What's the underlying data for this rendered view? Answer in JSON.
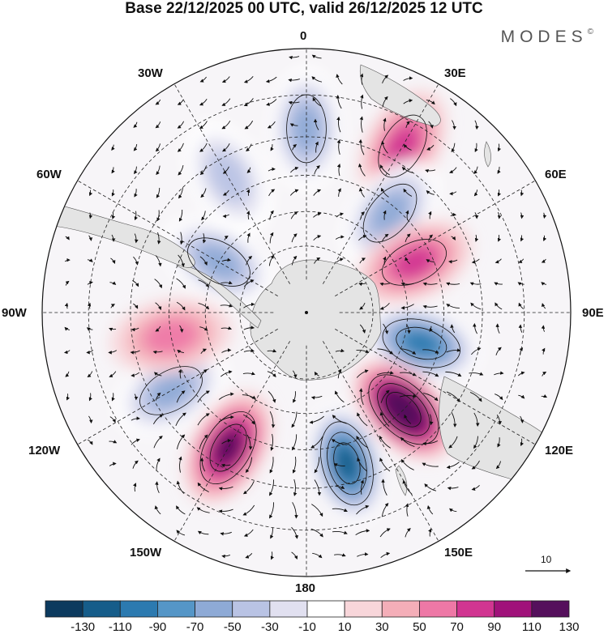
{
  "header": {
    "title": "Base 22/12/2025 00 UTC, valid 26/12/2025 12 UTC",
    "logo": "MODES",
    "logo_mark": "©"
  },
  "map": {
    "projection": "south polar stereographic",
    "longitude_labels": [
      "0",
      "30E",
      "60E",
      "90E",
      "120E",
      "150E",
      "180",
      "150W",
      "120W",
      "90W",
      "60W",
      "30W"
    ],
    "anomalies": [
      {
        "sign": "negative",
        "lon": 0,
        "lat": -38,
        "value": -50
      },
      {
        "sign": "positive",
        "lon": 30,
        "lat": -36,
        "value": 50
      },
      {
        "sign": "negative",
        "lon": 40,
        "lat": -52,
        "value": -50
      },
      {
        "sign": "positive",
        "lon": 65,
        "lat": -55,
        "value": 50
      },
      {
        "sign": "negative",
        "lon": 105,
        "lat": -55,
        "value": -90
      },
      {
        "sign": "positive",
        "lon": 135,
        "lat": -50,
        "value": 130
      },
      {
        "sign": "negative",
        "lon": 165,
        "lat": -45,
        "value": -110
      },
      {
        "sign": "positive",
        "lon": -150,
        "lat": -45,
        "value": 90
      },
      {
        "sign": "negative",
        "lon": -120,
        "lat": -45,
        "value": -50
      },
      {
        "sign": "positive",
        "lon": -100,
        "lat": -50,
        "value": 30
      },
      {
        "sign": "negative",
        "lon": -60,
        "lat": -60,
        "value": -50
      },
      {
        "sign": "negative",
        "lon": -30,
        "lat": -45,
        "value": -30
      }
    ],
    "reference_vector": "10",
    "colors": {
      "land": "#e4e4e4",
      "coast": "#555555",
      "grid": "#222222"
    }
  },
  "colorbar": {
    "ticks": [
      "-130",
      "-110",
      "-90",
      "-70",
      "-50",
      "-30",
      "-10",
      "10",
      "30",
      "50",
      "70",
      "90",
      "110",
      "130"
    ],
    "colors": [
      "#0c3a5e",
      "#165d8a",
      "#2c7ab0",
      "#5596c7",
      "#8eaad6",
      "#b9c3e4",
      "#e1e0f0",
      "#ffffff",
      "#f8d6da",
      "#f4aeb8",
      "#ee78a6",
      "#d13591",
      "#a0127a",
      "#55105c"
    ]
  }
}
